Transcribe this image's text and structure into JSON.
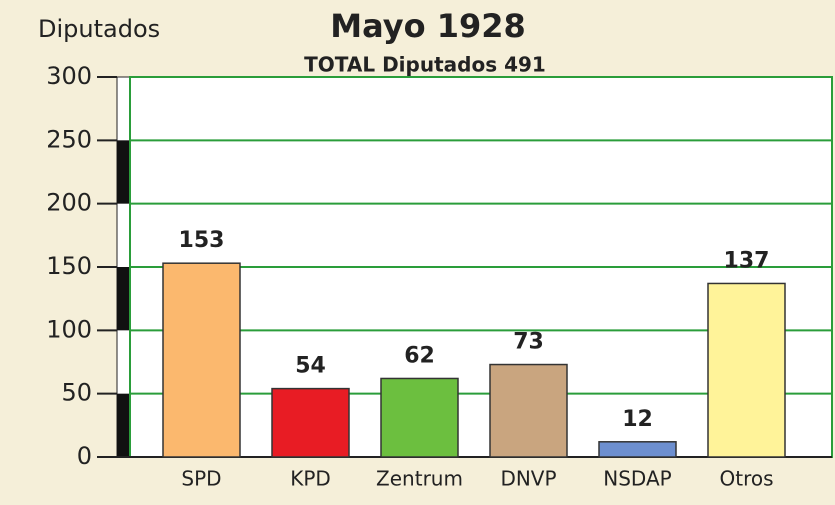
{
  "chart_data": {
    "type": "bar",
    "title": "Mayo 1928",
    "subtitle": "TOTAL Diputados 491",
    "y_label": "Diputados",
    "categories": [
      "SPD",
      "KPD",
      "Zentrum",
      "DNVP",
      "NSDAP",
      "Otros"
    ],
    "values": [
      153,
      54,
      62,
      73,
      12,
      137
    ],
    "colors": [
      "#fbb86e",
      "#e81c24",
      "#6cbf3f",
      "#c9a57f",
      "#6d8fcf",
      "#fff399"
    ],
    "ylim": [
      0,
      300
    ],
    "yticks": [
      0,
      50,
      100,
      150,
      200,
      250,
      300
    ],
    "grid": true,
    "grid_color": "#2a9d3a"
  }
}
